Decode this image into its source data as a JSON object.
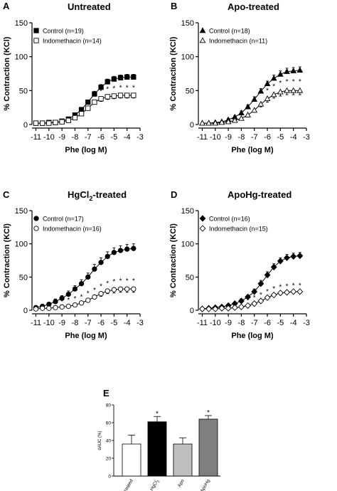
{
  "chart_data": [
    {
      "panel": "A",
      "type": "line",
      "title": "Untreated",
      "title_sub": "",
      "title_tail": "",
      "xlabel": "Phe (log M)",
      "ylabel": "% Contraction (KCl)",
      "xlim": [
        -11.3,
        -3
      ],
      "ylim": [
        0,
        150
      ],
      "xticks": [
        -11,
        -10,
        -9,
        -8,
        -7,
        -6,
        -5,
        -4,
        -3
      ],
      "yticks": [
        0,
        50,
        100,
        150
      ],
      "legend_position": "top-left",
      "x": [
        -11,
        -10.5,
        -10,
        -9.5,
        -9,
        -8.5,
        -8,
        -7.5,
        -7,
        -6.5,
        -6,
        -5.5,
        -5,
        -4.5,
        -4,
        -3.5
      ],
      "series": [
        {
          "name": "Control (n=19)",
          "marker": "square-filled",
          "values": [
            2,
            2,
            3,
            3,
            5,
            8,
            14,
            22,
            33,
            45,
            55,
            63,
            67,
            69,
            70,
            70
          ],
          "err": [
            1,
            1,
            1,
            1,
            1,
            2,
            2,
            3,
            3,
            4,
            4,
            4,
            4,
            4,
            4,
            4
          ]
        },
        {
          "name": "Indomethacin (n=14)",
          "marker": "square-open",
          "values": [
            2,
            2,
            2,
            3,
            4,
            6,
            10,
            16,
            24,
            33,
            38,
            41,
            42,
            43,
            43,
            43
          ],
          "err": [
            1,
            1,
            1,
            1,
            1,
            1,
            2,
            2,
            3,
            3,
            4,
            4,
            4,
            4,
            4,
            4
          ]
        }
      ],
      "sig_x": [
        -6,
        -5.5,
        -5,
        -4.5,
        -4,
        -3.5
      ],
      "sig_mark": "*"
    },
    {
      "panel": "B",
      "type": "line",
      "title": "Apo-treated",
      "title_sub": "",
      "title_tail": "",
      "xlabel": "Phe (log M)",
      "ylabel": "% Contraction (KCl)",
      "xlim": [
        -11.3,
        -3
      ],
      "ylim": [
        0,
        150
      ],
      "xticks": [
        -11,
        -10,
        -9,
        -8,
        -7,
        -6,
        -5,
        -4,
        -3
      ],
      "yticks": [
        0,
        50,
        100,
        150
      ],
      "legend_position": "top-left",
      "x": [
        -11,
        -10.5,
        -10,
        -9.5,
        -9,
        -8.5,
        -8,
        -7.5,
        -7,
        -6.5,
        -6,
        -5.5,
        -5,
        -4.5,
        -4,
        -3.5
      ],
      "series": [
        {
          "name": "Control (n=18)",
          "marker": "triangle-filled",
          "values": [
            2,
            2,
            3,
            4,
            7,
            11,
            17,
            26,
            37,
            49,
            60,
            68,
            74,
            78,
            79,
            80
          ],
          "err": [
            1,
            1,
            1,
            1,
            2,
            2,
            3,
            3,
            4,
            4,
            4,
            5,
            5,
            5,
            5,
            5
          ]
        },
        {
          "name": "Indomethacin (n=11)",
          "marker": "triangle-open",
          "values": [
            2,
            2,
            2,
            3,
            4,
            6,
            9,
            14,
            21,
            30,
            38,
            44,
            48,
            50,
            50,
            50
          ],
          "err": [
            1,
            1,
            1,
            1,
            1,
            2,
            2,
            3,
            3,
            4,
            5,
            5,
            6,
            6,
            6,
            6
          ]
        }
      ],
      "sig_x": [
        -6,
        -5.5,
        -5,
        -4.5,
        -4,
        -3.5
      ],
      "sig_mark": "*"
    },
    {
      "panel": "C",
      "type": "line",
      "title": "HgCl",
      "title_sub": "2",
      "title_tail": "-treated",
      "xlabel": "Phe (log M)",
      "ylabel": "% Contraction (KCl)",
      "xlim": [
        -11.3,
        -3
      ],
      "ylim": [
        0,
        150
      ],
      "xticks": [
        -11,
        -10,
        -9,
        -8,
        -7,
        -6,
        -5,
        -4,
        -3
      ],
      "yticks": [
        0,
        50,
        100,
        150
      ],
      "legend_position": "top-left",
      "x": [
        -11,
        -10.5,
        -10,
        -9.5,
        -9,
        -8.5,
        -8,
        -7.5,
        -7,
        -6.5,
        -6,
        -5.5,
        -5,
        -4.5,
        -4,
        -3.5
      ],
      "series": [
        {
          "name": "Control (n=17)",
          "marker": "circle-filled",
          "values": [
            4,
            6,
            9,
            13,
            18,
            24,
            32,
            40,
            50,
            62,
            72,
            81,
            87,
            90,
            92,
            93
          ],
          "err": [
            2,
            2,
            3,
            4,
            4,
            5,
            5,
            6,
            6,
            7,
            7,
            7,
            7,
            7,
            7,
            7
          ]
        },
        {
          "name": "Indomethacin (n=16)",
          "marker": "circle-open",
          "values": [
            2,
            3,
            3,
            4,
            5,
            6,
            8,
            11,
            15,
            20,
            25,
            29,
            31,
            32,
            32,
            32
          ],
          "err": [
            1,
            1,
            1,
            1,
            1,
            2,
            2,
            2,
            3,
            3,
            4,
            4,
            5,
            5,
            5,
            5
          ]
        }
      ],
      "sig_x": [
        -9,
        -8.5,
        -8,
        -7.5,
        -7,
        -6.5,
        -6,
        -5.5,
        -5,
        -4.5,
        -4,
        -3.5
      ],
      "sig_mark": "*"
    },
    {
      "panel": "D",
      "type": "line",
      "title": "ApoHg-treated",
      "title_sub": "",
      "title_tail": "",
      "xlabel": "Phe (log M)",
      "ylabel": "% Contraction (KCl)",
      "xlim": [
        -11.3,
        -3
      ],
      "ylim": [
        0,
        150
      ],
      "xticks": [
        -11,
        -10,
        -9,
        -8,
        -7,
        -6,
        -5,
        -4,
        -3
      ],
      "yticks": [
        0,
        50,
        100,
        150
      ],
      "legend_position": "top-left",
      "x": [
        -11,
        -10.5,
        -10,
        -9.5,
        -9,
        -8.5,
        -8,
        -7.5,
        -7,
        -6.5,
        -6,
        -5.5,
        -5,
        -4.5,
        -4,
        -3.5
      ],
      "series": [
        {
          "name": "Control (n=16)",
          "marker": "diamond-filled",
          "values": [
            2,
            3,
            4,
            5,
            7,
            10,
            14,
            20,
            28,
            40,
            53,
            65,
            74,
            79,
            81,
            82
          ],
          "err": [
            1,
            1,
            1,
            1,
            2,
            2,
            3,
            3,
            4,
            5,
            5,
            5,
            5,
            5,
            5,
            5
          ]
        },
        {
          "name": "Indomethacin (n=15)",
          "marker": "diamond-open",
          "values": [
            2,
            2,
            2,
            3,
            3,
            4,
            5,
            7,
            10,
            14,
            19,
            23,
            26,
            27,
            28,
            28
          ],
          "err": [
            1,
            1,
            1,
            1,
            1,
            1,
            1,
            1,
            2,
            2,
            2,
            2,
            2,
            2,
            2,
            2
          ]
        }
      ],
      "sig_x": [
        -7.5,
        -7,
        -6.5,
        -6,
        -5.5,
        -5,
        -4.5,
        -4,
        -3.5
      ],
      "sig_mark": "*"
    },
    {
      "panel": "E",
      "type": "bar",
      "categories": [
        "Untreated",
        "HgCl",
        "Apo",
        "ApoHg"
      ],
      "category_subs": [
        "",
        "2",
        "",
        ""
      ],
      "values": [
        36,
        61,
        36,
        64
      ],
      "err": [
        10,
        6,
        7,
        4
      ],
      "significant": [
        false,
        true,
        false,
        true
      ],
      "sig_mark": "*",
      "colors": [
        "#ffffff",
        "#000000",
        "#bfbfbf",
        "#7f7f7f"
      ],
      "ylabel": "dAUC (%)",
      "ylim": [
        0,
        80
      ],
      "yticks": [
        0,
        20,
        40,
        60,
        80
      ]
    }
  ]
}
